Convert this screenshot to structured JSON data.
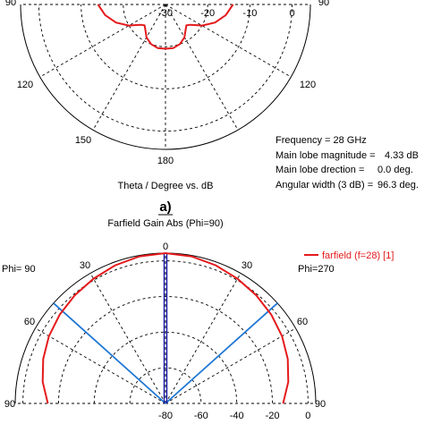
{
  "chart_data": [
    {
      "type": "polar",
      "panel_label": "a)",
      "xlabel": "Theta / Degree vs. dB",
      "angle_ticks": [
        "90",
        "120",
        "150",
        "180",
        "120",
        "90"
      ],
      "radial_ticks": [
        "-30",
        "-20",
        "-10",
        "0"
      ],
      "radial_range_db": [
        -30,
        4.33
      ],
      "info_lines": [
        {
          "label": "Frequency = 28 GHz",
          "value": ""
        },
        {
          "label": "Main lobe magnitude =",
          "value": "4.33 dB"
        },
        {
          "label": "Main lobe drection =",
          "value": "0.0 deg."
        },
        {
          "label": "Angular width (3 dB) =",
          "value": "96.3 deg."
        }
      ],
      "series": [
        {
          "color": "#e41a1c",
          "theta_deg": [
            90,
            100,
            110,
            120,
            125,
            130,
            135,
            140,
            150,
            160,
            170,
            180,
            190,
            200,
            210,
            220,
            225,
            230,
            235,
            240,
            250,
            260,
            270
          ],
          "gain_db": [
            -14,
            -15.5,
            -17.5,
            -20,
            -21.5,
            -22.5,
            -23,
            -22.5,
            -21,
            -20,
            -19.5,
            -19.5,
            -19.5,
            -20,
            -21,
            -22.5,
            -23,
            -22.5,
            -21.5,
            -20,
            -17.5,
            -15.5,
            -14
          ]
        }
      ]
    },
    {
      "type": "polar",
      "title": "Farfield Gain Abs (Phi=90)",
      "left_caption": "Phi= 90",
      "right_caption": "Phi=270",
      "angle_ticks": [
        "90",
        "60",
        "30",
        "0",
        "30",
        "60",
        "90"
      ],
      "radial_ticks": [
        "-80",
        "-60",
        "-40",
        "-20",
        "0"
      ],
      "radial_range_db": [
        -80,
        4.33
      ],
      "legend": {
        "label": "farfield (f=28) [1]",
        "position": "top-right"
      },
      "reference_lines": [
        {
          "color": "#1f77d4",
          "theta_deg": -48.15
        },
        {
          "color": "#1f77d4",
          "theta_deg": 48.15
        },
        {
          "color": "#1a1aa8",
          "theta_deg": 0
        }
      ],
      "series": [
        {
          "color": "#e41a1c",
          "theta_deg": [
            -90,
            -80,
            -70,
            -60,
            -50,
            -40,
            -30,
            -20,
            -10,
            0,
            10,
            20,
            30,
            40,
            50,
            60,
            70,
            80,
            90
          ],
          "gain_db": [
            -14,
            -10,
            -7,
            -4.5,
            -2.5,
            -0.8,
            0.8,
            2.5,
            3.8,
            4.33,
            3.8,
            2.5,
            0.8,
            -0.8,
            -2.5,
            -4.5,
            -7,
            -10,
            -14
          ]
        }
      ]
    }
  ]
}
